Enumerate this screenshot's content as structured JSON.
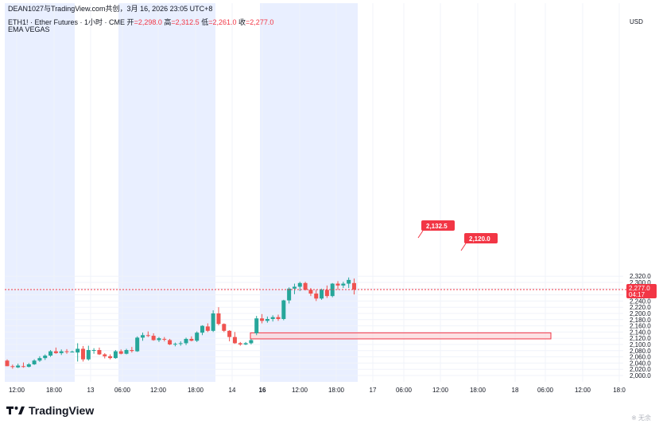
{
  "header": {
    "attribution": "DEAN1027与TradingView.com共创，3月 16, 2026 23:05 UTC+8",
    "symbol": "ETH1! · Ether Futures · 1小时 · CME",
    "o_label": "开",
    "o_value": "=2,298.0",
    "h_label": "高",
    "h_value": "=2,312.5",
    "l_label": "低",
    "l_value": "=2,261.0",
    "c_label": "收",
    "c_value": "=2,277.0",
    "indicator": "EMA VEGAS"
  },
  "axis": {
    "currency": "USD",
    "y_ticks": [
      "2,000.0",
      "2,020.0",
      "2,040.0",
      "2,060.0",
      "2,080.0",
      "2,100.0",
      "2,120.0",
      "2,140.0",
      "2,160.0",
      "2,180.0",
      "2,200.0",
      "2,220.0",
      "2,240.0",
      "2,260.0",
      "2,280.0",
      "2,300.0",
      "2,320.0"
    ],
    "x_ticks": [
      "12:00",
      "18:00",
      "13",
      "06:00",
      "12:00",
      "18:00",
      "14",
      "16",
      "12:00",
      "18:00",
      "17",
      "06:00",
      "12:00",
      "18:00",
      "18",
      "06:00",
      "12:00",
      "18:0"
    ]
  },
  "price_tag": {
    "price": "2,277.0",
    "countdown": "04:17"
  },
  "zone_labels": {
    "upper": "2,132.5",
    "lower": "2,120.0"
  },
  "brand": {
    "name": "TradingView"
  },
  "watermark": "※ 无余",
  "colors": {
    "up": "#26a69a",
    "down": "#ef5350",
    "session_shade": "#e9efff",
    "price_line": "#f23645",
    "zone_fill": "#fbd5d9",
    "zone_border": "#f23645"
  },
  "chart_data": {
    "type": "candlestick",
    "interval": "1小时",
    "ylim": [
      1995,
      2330
    ],
    "grid": true,
    "current_price": 2277.0,
    "zone": {
      "low": 2120.0,
      "high": 2132.5
    },
    "candles": [
      {
        "o": 2048,
        "h": 2052,
        "l": 2030,
        "c": 2030
      },
      {
        "o": 2030,
        "h": 2035,
        "l": 2022,
        "c": 2028
      },
      {
        "o": 2026,
        "h": 2038,
        "l": 2024,
        "c": 2032
      },
      {
        "o": 2030,
        "h": 2042,
        "l": 2025,
        "c": 2028
      },
      {
        "o": 2028,
        "h": 2040,
        "l": 2026,
        "c": 2036
      },
      {
        "o": 2036,
        "h": 2052,
        "l": 2034,
        "c": 2048
      },
      {
        "o": 2048,
        "h": 2062,
        "l": 2044,
        "c": 2056
      },
      {
        "o": 2056,
        "h": 2068,
        "l": 2050,
        "c": 2064
      },
      {
        "o": 2064,
        "h": 2082,
        "l": 2060,
        "c": 2078
      },
      {
        "o": 2078,
        "h": 2090,
        "l": 2070,
        "c": 2072
      },
      {
        "o": 2072,
        "h": 2084,
        "l": 2066,
        "c": 2078
      },
      {
        "o": 2078,
        "h": 2085,
        "l": 2070,
        "c": 2076
      },
      {
        "o": 2076,
        "h": 2080,
        "l": 2074,
        "c": 2077
      },
      {
        "o": 2074,
        "h": 2104,
        "l": 2045,
        "c": 2086
      },
      {
        "o": 2086,
        "h": 2095,
        "l": 2045,
        "c": 2052
      },
      {
        "o": 2052,
        "h": 2096,
        "l": 2048,
        "c": 2082
      },
      {
        "o": 2080,
        "h": 2088,
        "l": 2070,
        "c": 2082
      },
      {
        "o": 2082,
        "h": 2090,
        "l": 2066,
        "c": 2068
      },
      {
        "o": 2068,
        "h": 2072,
        "l": 2055,
        "c": 2062
      },
      {
        "o": 2062,
        "h": 2068,
        "l": 2052,
        "c": 2056
      },
      {
        "o": 2056,
        "h": 2082,
        "l": 2054,
        "c": 2078
      },
      {
        "o": 2078,
        "h": 2084,
        "l": 2068,
        "c": 2070
      },
      {
        "o": 2070,
        "h": 2086,
        "l": 2068,
        "c": 2082
      },
      {
        "o": 2082,
        "h": 2092,
        "l": 2074,
        "c": 2079
      },
      {
        "o": 2078,
        "h": 2126,
        "l": 2076,
        "c": 2122
      },
      {
        "o": 2122,
        "h": 2138,
        "l": 2112,
        "c": 2130
      },
      {
        "o": 2130,
        "h": 2142,
        "l": 2124,
        "c": 2128
      },
      {
        "o": 2128,
        "h": 2136,
        "l": 2112,
        "c": 2114
      },
      {
        "o": 2114,
        "h": 2124,
        "l": 2108,
        "c": 2120
      },
      {
        "o": 2118,
        "h": 2124,
        "l": 2110,
        "c": 2116
      },
      {
        "o": 2114,
        "h": 2118,
        "l": 2098,
        "c": 2100
      },
      {
        "o": 2100,
        "h": 2106,
        "l": 2094,
        "c": 2102
      },
      {
        "o": 2102,
        "h": 2110,
        "l": 2096,
        "c": 2104
      },
      {
        "o": 2104,
        "h": 2122,
        "l": 2098,
        "c": 2118
      },
      {
        "o": 2118,
        "h": 2126,
        "l": 2110,
        "c": 2112
      },
      {
        "o": 2112,
        "h": 2142,
        "l": 2108,
        "c": 2138
      },
      {
        "o": 2138,
        "h": 2162,
        "l": 2130,
        "c": 2160
      },
      {
        "o": 2158,
        "h": 2168,
        "l": 2140,
        "c": 2144
      },
      {
        "o": 2144,
        "h": 2210,
        "l": 2140,
        "c": 2200
      },
      {
        "o": 2200,
        "h": 2220,
        "l": 2162,
        "c": 2166
      },
      {
        "o": 2166,
        "h": 2168,
        "l": 2140,
        "c": 2144
      },
      {
        "o": 2144,
        "h": 2146,
        "l": 2110,
        "c": 2124
      },
      {
        "o": 2124,
        "h": 2140,
        "l": 2102,
        "c": 2104
      },
      {
        "o": 2104,
        "h": 2108,
        "l": 2096,
        "c": 2100
      },
      {
        "o": 2100,
        "h": 2108,
        "l": 2098,
        "c": 2104
      },
      {
        "o": 2104,
        "h": 2118,
        "l": 2100,
        "c": 2114
      },
      {
        "o": 2136,
        "h": 2192,
        "l": 2130,
        "c": 2184
      },
      {
        "o": 2184,
        "h": 2198,
        "l": 2168,
        "c": 2176
      },
      {
        "o": 2176,
        "h": 2190,
        "l": 2170,
        "c": 2182
      },
      {
        "o": 2182,
        "h": 2194,
        "l": 2174,
        "c": 2188
      },
      {
        "o": 2188,
        "h": 2196,
        "l": 2176,
        "c": 2182
      },
      {
        "o": 2182,
        "h": 2244,
        "l": 2178,
        "c": 2242
      },
      {
        "o": 2242,
        "h": 2284,
        "l": 2232,
        "c": 2280
      },
      {
        "o": 2280,
        "h": 2296,
        "l": 2262,
        "c": 2286
      },
      {
        "o": 2286,
        "h": 2302,
        "l": 2272,
        "c": 2298
      },
      {
        "o": 2298,
        "h": 2302,
        "l": 2274,
        "c": 2276
      },
      {
        "o": 2276,
        "h": 2282,
        "l": 2256,
        "c": 2264
      },
      {
        "o": 2264,
        "h": 2276,
        "l": 2240,
        "c": 2248
      },
      {
        "o": 2248,
        "h": 2280,
        "l": 2244,
        "c": 2276
      },
      {
        "o": 2276,
        "h": 2290,
        "l": 2250,
        "c": 2256
      },
      {
        "o": 2256,
        "h": 2298,
        "l": 2252,
        "c": 2296
      },
      {
        "o": 2296,
        "h": 2304,
        "l": 2276,
        "c": 2290
      },
      {
        "o": 2290,
        "h": 2302,
        "l": 2282,
        "c": 2296
      },
      {
        "o": 2296,
        "h": 2316,
        "l": 2282,
        "c": 2308
      },
      {
        "o": 2298,
        "h": 2312.5,
        "l": 2261,
        "c": 2277
      }
    ]
  }
}
